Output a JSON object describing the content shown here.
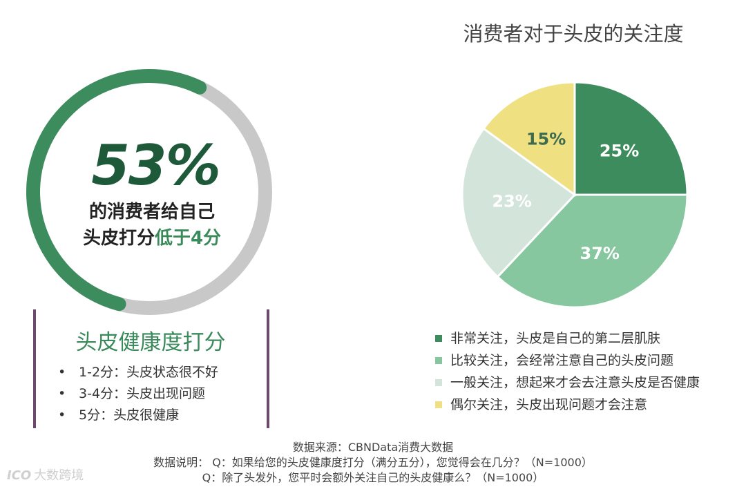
{
  "left_panel": {
    "percent": "53%",
    "percent_value": 0.53,
    "line1": "的消费者给自己",
    "line2_prefix": "头皮打分",
    "line2_highlight": "低于4分",
    "score_title": "头皮健康度打分",
    "bullets": [
      {
        "marker": "•",
        "text": "1-2分：头皮状态很不好"
      },
      {
        "marker": "•",
        "text": "3-4分：头皮出现问题"
      },
      {
        "marker": "•",
        "text": "5分：头皮很健康"
      }
    ],
    "colors": {
      "fill": "#3d8c5e",
      "track": "#c8c8c8"
    }
  },
  "chart_data": {
    "type": "pie",
    "title": "消费者对于头皮的关注度",
    "series": [
      {
        "name": "非常关注，头皮是自己的第二层肌肤",
        "value": 25,
        "label": "25%",
        "color": "#3d8c5e"
      },
      {
        "name": "比较关注，会经常注意自己的头皮问题",
        "value": 37,
        "label": "37%",
        "color": "#86c7a0"
      },
      {
        "name": "一般关注，想起来才会去注意头皮是否健康",
        "value": 23,
        "label": "23%",
        "color": "#d3e4da"
      },
      {
        "name": "偶尔关注，头皮出现问题才会注意",
        "value": 15,
        "label": "15%",
        "color": "#efe082"
      }
    ],
    "legend_position": "bottom"
  },
  "footer": {
    "source": "数据来源：CBNData消费大数据",
    "note1": "数据说明：  Q：如果给您的头皮健康度打分（满分五分），您觉得会在几分？（N=1000）",
    "note2": "Q：除了头发外，您平时会额外关注自己的头皮健康么？（N=1000）"
  },
  "watermark": {
    "mark": "ICO",
    "text": "大数跨境"
  }
}
